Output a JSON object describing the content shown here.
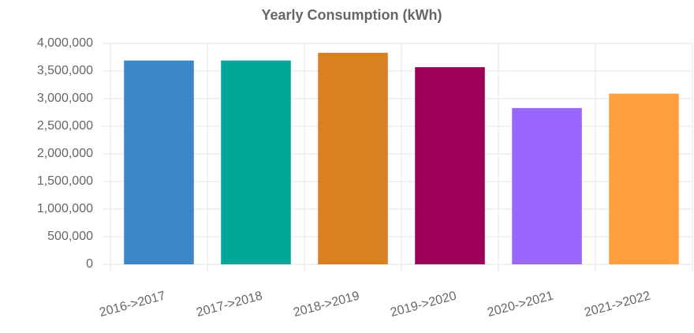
{
  "chart_data": {
    "type": "bar",
    "title": "Yearly Consumption (kWh)",
    "categories": [
      "2016->2017",
      "2017->2018",
      "2018->2019",
      "2019->2020",
      "2020->2021",
      "2021->2022"
    ],
    "values": [
      3690000,
      3690000,
      3830000,
      3570000,
      2830000,
      3090000
    ],
    "colors": [
      "#3d87c9",
      "#00a89a",
      "#d98022",
      "#9c0059",
      "#9966ff",
      "#ff9f40"
    ],
    "ylim": [
      0,
      4000000
    ],
    "yticks": [
      0,
      {
        "value": 500000,
        "label": "500,000"
      },
      {
        "value": 1000000,
        "label": "1,000,000"
      },
      {
        "value": 1500000,
        "label": "1,500,000"
      },
      {
        "value": 2000000,
        "label": "2,000,000"
      },
      {
        "value": 2500000,
        "label": "2,500,000"
      },
      {
        "value": 3000000,
        "label": "3,000,000"
      },
      {
        "value": 3500000,
        "label": "3,500,000"
      },
      {
        "value": 4000000,
        "label": "4,000,000"
      }
    ],
    "grid": true
  }
}
